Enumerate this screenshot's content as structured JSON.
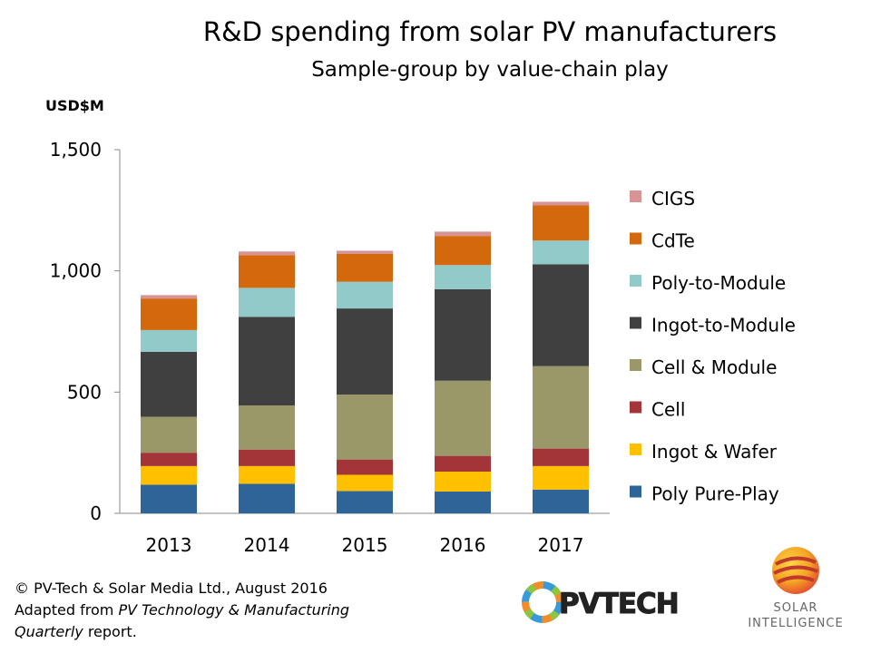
{
  "chart_data": {
    "type": "bar",
    "stacked": true,
    "title": "R&D spending  from solar PV manufacturers",
    "subtitle": "Sample-group by value-chain play",
    "ylabel": "USD$M",
    "xlabel": "",
    "ylim": [
      0,
      1500
    ],
    "yticks": [
      "0",
      "500",
      "1,000",
      "1,500"
    ],
    "ytick_values": [
      0,
      500,
      1000,
      1500
    ],
    "grid": false,
    "legend_position": "right",
    "categories": [
      "2013",
      "2014",
      "2015",
      "2016",
      "2017"
    ],
    "series": [
      {
        "name": "Poly Pure-Play",
        "color": "#2e6497",
        "values": [
          118,
          122,
          92,
          90,
          98
        ]
      },
      {
        "name": "Ingot & Wafer",
        "color": "#ffc000",
        "values": [
          77,
          73,
          67,
          82,
          97
        ]
      },
      {
        "name": "Cell",
        "color": "#a33538",
        "values": [
          55,
          68,
          63,
          65,
          72
        ]
      },
      {
        "name": "Cell & Module",
        "color": "#9a9868",
        "values": [
          148,
          182,
          268,
          310,
          340
        ]
      },
      {
        "name": "Ingot-to-Module",
        "color": "#404040",
        "values": [
          268,
          365,
          355,
          377,
          420
        ]
      },
      {
        "name": "Poly-to-Module",
        "color": "#92c9c9",
        "values": [
          90,
          120,
          110,
          100,
          98
        ]
      },
      {
        "name": "CdTe",
        "color": "#d4680c",
        "values": [
          130,
          135,
          115,
          120,
          145
        ]
      },
      {
        "name": "CIGS",
        "color": "#d89394",
        "values": [
          14,
          15,
          13,
          18,
          15
        ]
      }
    ]
  },
  "footer": {
    "line1": "© PV-Tech & Solar Media Ltd., August 2016",
    "line2_prefix": "Adapted from ",
    "line2_italic": "PV Technology & Manufacturing",
    "line3_italic": "Quarterly",
    "line3_suffix": " report."
  },
  "logos": {
    "pvtech": "PVTECH",
    "solar_intelligence_line1": "SOLAR",
    "solar_intelligence_line2": "INTELLIGENCE"
  }
}
